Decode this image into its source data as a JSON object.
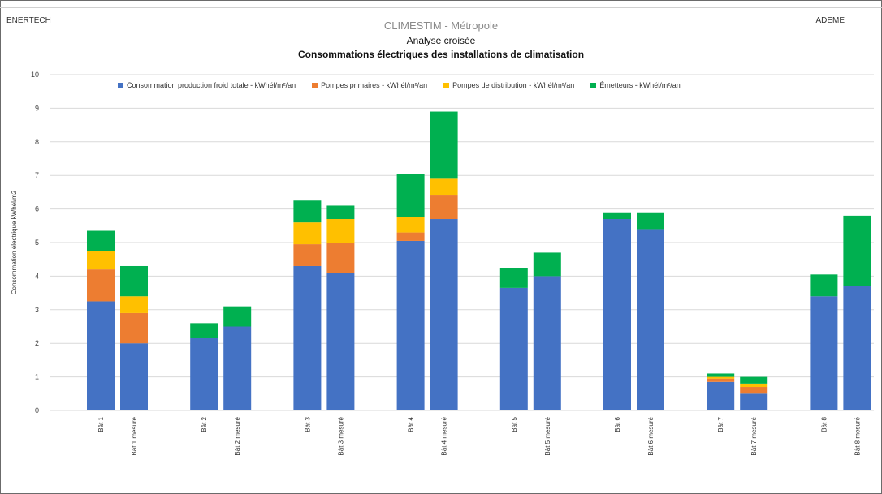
{
  "header": {
    "left": "ENERTECH",
    "right": "ADEME",
    "title_line1": "CLIMESTIM - Métropole",
    "title_line2": "Analyse croisée",
    "title_line3": "Consommations électriques des installations de climatisation"
  },
  "chart_data": {
    "type": "bar",
    "stacked": true,
    "title": "Consommations électriques des installations de climatisation",
    "ylabel": "Consommation électrique kWhél/m2",
    "xlabel": "",
    "ylim": [
      0,
      10
    ],
    "yticks": [
      "0",
      "1",
      "2",
      "3",
      "4",
      "5",
      "6",
      "7",
      "8",
      "9",
      "10"
    ],
    "grid": true,
    "legend_position": "top",
    "categories": [
      "Bât 1",
      "Bât 1 mesuré",
      "Bât 2",
      "Bât 2 mesuré",
      "Bât 3",
      "Bât 3 mesuré",
      "Bât 4",
      "Bât 4 mesuré",
      "Bât 5",
      "Bât 5 mesuré",
      "Bât 6",
      "Bât 6 mesuré",
      "Bât 7",
      "Bât 7 mesuré",
      "Bât 8",
      "Bât 8 mesuré"
    ],
    "series": [
      {
        "name": "Consommation production froid totale - kWhél/m²/an",
        "color": "#4472C4",
        "values": [
          3.25,
          2.0,
          2.15,
          2.5,
          4.3,
          4.1,
          5.05,
          5.7,
          3.65,
          4.0,
          5.7,
          5.4,
          0.85,
          0.5,
          3.4,
          3.7
        ]
      },
      {
        "name": "Pompes primaires - kWhél/m²/an",
        "color": "#ED7D31",
        "values": [
          0.95,
          0.9,
          0,
          0,
          0.65,
          0.9,
          0.25,
          0.7,
          0,
          0,
          0,
          0,
          0.1,
          0.2,
          0,
          0
        ]
      },
      {
        "name": "Pompes de distribution - kWhél/m²/an",
        "color": "#FFC000",
        "values": [
          0.55,
          0.5,
          0,
          0,
          0.65,
          0.7,
          0.45,
          0.5,
          0,
          0,
          0,
          0,
          0.05,
          0.1,
          0,
          0
        ]
      },
      {
        "name": "Émetteurs - kWhél/m²/an",
        "color": "#00B050",
        "values": [
          0.6,
          0.9,
          0.45,
          0.6,
          0.65,
          0.4,
          1.3,
          2.0,
          0.6,
          0.7,
          0.2,
          0.5,
          0.1,
          0.2,
          0.65,
          2.1
        ]
      }
    ]
  }
}
